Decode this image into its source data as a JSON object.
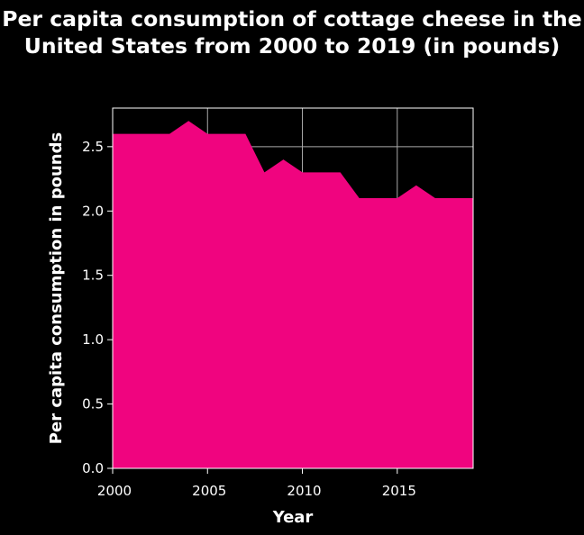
{
  "chart_data": {
    "type": "area",
    "title": "Per capita consumption of cottage cheese in the United States from 2000 to 2019 (in pounds)",
    "xlabel": "Year",
    "ylabel": "Per capita consumption in pounds",
    "x": [
      2000,
      2001,
      2002,
      2003,
      2004,
      2005,
      2006,
      2007,
      2008,
      2009,
      2010,
      2011,
      2012,
      2013,
      2014,
      2015,
      2016,
      2017,
      2018,
      2019
    ],
    "series": [
      {
        "name": "Per capita consumption",
        "values": [
          2.6,
          2.6,
          2.6,
          2.6,
          2.7,
          2.6,
          2.6,
          2.6,
          2.3,
          2.4,
          2.3,
          2.3,
          2.3,
          2.1,
          2.1,
          2.1,
          2.2,
          2.1,
          2.1,
          2.1
        ]
      }
    ],
    "xlim": [
      2000,
      2019
    ],
    "ylim": [
      0,
      2.8
    ],
    "xticks": [
      2000,
      2005,
      2010,
      2015
    ],
    "xtick_labels": [
      "2000",
      "2005",
      "2010",
      "2015"
    ],
    "yticks": [
      0,
      0.5,
      1.0,
      1.5,
      2.0,
      2.5
    ],
    "ytick_labels": [
      "0.0",
      "0.5",
      "1.0",
      "1.5",
      "2.0",
      "2.5"
    ],
    "grid": true,
    "colors": {
      "background": "#000000",
      "fill": "#f0047f",
      "grid": "#aaaaaa",
      "text": "#ffffff"
    }
  }
}
